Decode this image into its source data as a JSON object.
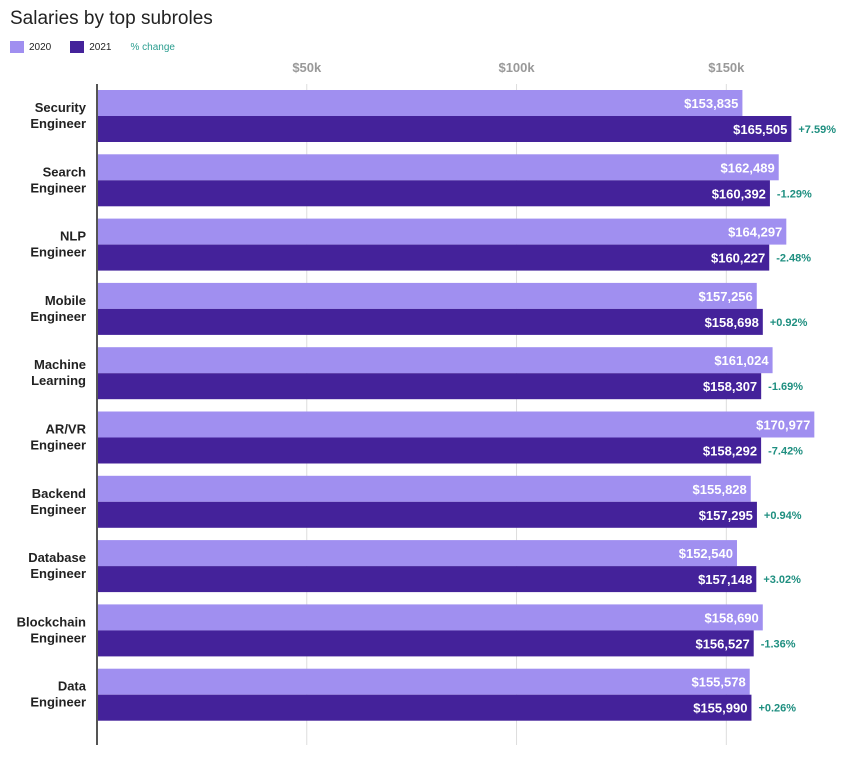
{
  "chart_data": {
    "type": "bar",
    "orientation": "horizontal",
    "title": "Salaries by top subroles",
    "legend": {
      "series_2020": "2020",
      "series_2021": "2021",
      "change_label": "% change",
      "placement": "top-left"
    },
    "x_ticks": [
      "$50k",
      "$100k",
      "$150k"
    ],
    "x_tick_values": [
      50000,
      100000,
      150000
    ],
    "xlim": [
      0,
      175000
    ],
    "grid": true,
    "colors": {
      "2020": "#a08ff0",
      "2021": "#44229a",
      "change": "#1f8f80"
    },
    "categories": [
      [
        "Security",
        "Engineer"
      ],
      [
        "Search",
        "Engineer"
      ],
      [
        "NLP",
        "Engineer"
      ],
      [
        "Mobile",
        "Engineer"
      ],
      [
        "Machine",
        "Learning"
      ],
      [
        "AR/VR",
        "Engineer"
      ],
      [
        "Backend",
        "Engineer"
      ],
      [
        "Database",
        "Engineer"
      ],
      [
        "Blockchain",
        "Engineer"
      ],
      [
        "Data",
        "Engineer"
      ]
    ],
    "series": [
      {
        "name": "2020",
        "values": [
          153835,
          162489,
          164297,
          157256,
          161024,
          170977,
          155828,
          152540,
          158690,
          155578
        ],
        "labels": [
          "$153,835",
          "$162,489",
          "$164,297",
          "$157,256",
          "$161,024",
          "$170,977",
          "$155,828",
          "$152,540",
          "$158,690",
          "$155,578"
        ]
      },
      {
        "name": "2021",
        "values": [
          165505,
          160392,
          160227,
          158698,
          158307,
          158292,
          157295,
          157148,
          156527,
          155990
        ],
        "labels": [
          "$165,505",
          "$160,392",
          "$160,227",
          "$158,698",
          "$158,307",
          "$158,292",
          "$157,295",
          "$157,148",
          "$156,527",
          "$155,990"
        ]
      }
    ],
    "pct_change": [
      "+7.59%",
      "-1.29%",
      "-2.48%",
      "+0.92%",
      "-1.69%",
      "-7.42%",
      "+0.94%",
      "+3.02%",
      "-1.36%",
      "+0.26%"
    ]
  }
}
